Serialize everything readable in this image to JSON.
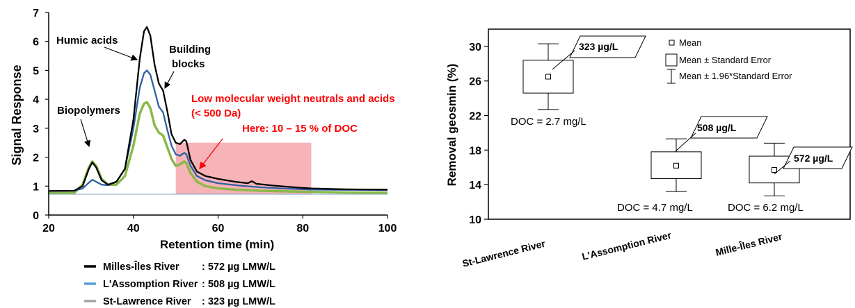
{
  "chart_data": [
    {
      "type": "line",
      "xlabel": "Retention time (min)",
      "ylabel": "Signal Response",
      "xlim": [
        20,
        100
      ],
      "ylim": [
        0,
        7
      ],
      "x_ticks": [
        "20",
        "40",
        "60",
        "80",
        "100"
      ],
      "y_ticks": [
        "0",
        "1",
        "2",
        "3",
        "4",
        "5",
        "6",
        "7"
      ],
      "series": [
        {
          "name": "Milles-Îles River",
          "legend_value": ": 572 µg LMW/L",
          "color": "#000000",
          "points": [
            [
              20,
              0.83
            ],
            [
              26,
              0.84
            ],
            [
              28,
              1.0
            ],
            [
              29.5,
              1.6
            ],
            [
              30.3,
              1.82
            ],
            [
              31.2,
              1.65
            ],
            [
              32.5,
              1.2
            ],
            [
              34,
              1.05
            ],
            [
              36,
              1.15
            ],
            [
              38,
              1.6
            ],
            [
              40,
              3.3
            ],
            [
              41.5,
              5.4
            ],
            [
              42.5,
              6.35
            ],
            [
              43.2,
              6.5
            ],
            [
              44,
              6.2
            ],
            [
              45,
              5.2
            ],
            [
              46,
              4.55
            ],
            [
              47,
              4.3
            ],
            [
              48,
              3.6
            ],
            [
              49,
              2.8
            ],
            [
              50,
              2.5
            ],
            [
              51,
              2.45
            ],
            [
              52,
              2.6
            ],
            [
              52.5,
              2.55
            ],
            [
              53.5,
              1.9
            ],
            [
              55,
              1.5
            ],
            [
              57,
              1.35
            ],
            [
              60,
              1.25
            ],
            [
              64,
              1.15
            ],
            [
              67,
              1.1
            ],
            [
              68,
              1.17
            ],
            [
              69,
              1.08
            ],
            [
              73,
              1.02
            ],
            [
              78,
              0.96
            ],
            [
              82,
              0.92
            ],
            [
              90,
              0.89
            ],
            [
              100,
              0.88
            ]
          ]
        },
        {
          "name": "L'Assomption River",
          "legend_value": ": 508 µg LMW/L",
          "color": "#2f5fa3",
          "points": [
            [
              20,
              0.83
            ],
            [
              26,
              0.84
            ],
            [
              28,
              0.92
            ],
            [
              29.5,
              1.12
            ],
            [
              30.3,
              1.22
            ],
            [
              31.2,
              1.15
            ],
            [
              32.5,
              1.05
            ],
            [
              34,
              1.03
            ],
            [
              36,
              1.15
            ],
            [
              38,
              1.6
            ],
            [
              40,
              3.0
            ],
            [
              41.5,
              4.4
            ],
            [
              42.5,
              4.9
            ],
            [
              43.2,
              5.0
            ],
            [
              44,
              4.85
            ],
            [
              45,
              4.3
            ],
            [
              46,
              3.75
            ],
            [
              47,
              3.55
            ],
            [
              48,
              2.95
            ],
            [
              49,
              2.4
            ],
            [
              50,
              2.1
            ],
            [
              51,
              2.05
            ],
            [
              52,
              2.15
            ],
            [
              52.5,
              2.1
            ],
            [
              53.5,
              1.7
            ],
            [
              55,
              1.35
            ],
            [
              57,
              1.2
            ],
            [
              60,
              1.1
            ],
            [
              65,
              1.02
            ],
            [
              70,
              0.96
            ],
            [
              75,
              0.92
            ],
            [
              82,
              0.88
            ],
            [
              90,
              0.87
            ],
            [
              100,
              0.86
            ]
          ]
        },
        {
          "name": "St-Lawrence River",
          "legend_value": ": 323 µg LMW/L",
          "color": "#8cb84a",
          "legend_color": "#a6a6a6",
          "points": [
            [
              20,
              0.75
            ],
            [
              26,
              0.76
            ],
            [
              28,
              1.05
            ],
            [
              29.5,
              1.65
            ],
            [
              30.3,
              1.85
            ],
            [
              31.2,
              1.7
            ],
            [
              32.5,
              1.25
            ],
            [
              34,
              1.05
            ],
            [
              36,
              1.05
            ],
            [
              38,
              1.35
            ],
            [
              40,
              2.4
            ],
            [
              41.5,
              3.5
            ],
            [
              42.5,
              3.85
            ],
            [
              43.2,
              3.9
            ],
            [
              44,
              3.7
            ],
            [
              45,
              3.1
            ],
            [
              46,
              2.85
            ],
            [
              47,
              2.75
            ],
            [
              48,
              2.35
            ],
            [
              49,
              1.95
            ],
            [
              50,
              1.7
            ],
            [
              51,
              1.75
            ],
            [
              52,
              1.85
            ],
            [
              52.5,
              1.8
            ],
            [
              53.5,
              1.45
            ],
            [
              55,
              1.15
            ],
            [
              57,
              1.0
            ],
            [
              60,
              0.92
            ],
            [
              65,
              0.87
            ],
            [
              70,
              0.84
            ],
            [
              75,
              0.82
            ],
            [
              82,
              0.8
            ],
            [
              90,
              0.78
            ],
            [
              100,
              0.77
            ]
          ]
        }
      ],
      "annotations": {
        "humic": "Humic acids",
        "building": "Building",
        "building2": "blocks",
        "biopolymers": "Biopolymers",
        "lmw1": "Low molecular weight neutrals and acids",
        "lmw2": "(< 500 Da)",
        "lmw3": "Here: 10 – 15 % of DOC",
        "highlight_x": [
          50,
          82
        ],
        "highlight_color": "#f4a6ac",
        "annotation_color": "#ff0000"
      },
      "legend_placement": "bottom-left",
      "grid": false
    },
    {
      "type": "box",
      "ylabel": "Removal geosmin (%)",
      "ylim": [
        10,
        32
      ],
      "y_ticks": [
        "10",
        "14",
        "18",
        "22",
        "26",
        "30"
      ],
      "categories": [
        "St-Lawrence River",
        "L'Assomption River",
        "Mille-Îles River"
      ],
      "mean": [
        26.5,
        16.2,
        15.7
      ],
      "se_low": [
        24.6,
        14.7,
        14.2
      ],
      "se_high": [
        28.4,
        17.8,
        17.3
      ],
      "ci_low": [
        22.7,
        13.2,
        12.7
      ],
      "ci_high": [
        30.3,
        19.3,
        18.8
      ],
      "doc_labels": [
        "DOC = 2.7 mg/L",
        "DOC = 4.7 mg/L",
        "DOC = 6.2 mg/L"
      ],
      "callouts": [
        "323 µg/L",
        "508 µg/L",
        "572 µg/L"
      ],
      "legend": {
        "mean": "Mean",
        "se": "Mean ± Standard Error",
        "ci": "Mean ± 1.96*Standard Error"
      },
      "legend_placement": "top-right",
      "grid": false
    }
  ]
}
